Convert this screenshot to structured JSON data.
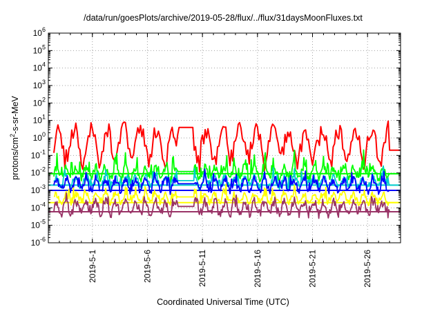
{
  "chart_data": {
    "type": "line",
    "title": "/data/run/goesPlots/archive/2019-05-28/flux/../flux/31daysMoonFluxes.txt",
    "xlabel": "Coordinated Universal Time (UTC)",
    "ylabel_parts": {
      "before": "protons/cm",
      "sup": "2",
      "after": "-s-sr-MeV"
    },
    "x_range": [
      "2019-04-27",
      "2019-05-29"
    ],
    "x_ticks": [
      "2019-5-1",
      "2019-5-6",
      "2019-5-11",
      "2019-5-16",
      "2019-5-21",
      "2019-5-26"
    ],
    "x_tick_dates": [
      "2019-05-01",
      "2019-05-06",
      "2019-05-11",
      "2019-05-16",
      "2019-05-21",
      "2019-05-26"
    ],
    "y_scale": "log",
    "ylim": [
      1e-06,
      1000000.0
    ],
    "y_ticks": [
      {
        "base": "10",
        "exp": "-6"
      },
      {
        "base": "10",
        "exp": "-5"
      },
      {
        "base": "10",
        "exp": "-4"
      },
      {
        "base": "10",
        "exp": "-3"
      },
      {
        "base": "10",
        "exp": "-2"
      },
      {
        "base": "10",
        "exp": "-1"
      },
      {
        "base": "10",
        "exp": "0"
      },
      {
        "base": "10",
        "exp": "1"
      },
      {
        "base": "10",
        "exp": "2"
      },
      {
        "base": "10",
        "exp": "3"
      },
      {
        "base": "10",
        "exp": "4"
      },
      {
        "base": "10",
        "exp": "5"
      },
      {
        "base": "10",
        "exp": "6"
      }
    ],
    "grid": true,
    "legend": "none",
    "series": [
      {
        "color": "#ff0000",
        "baseline": 0.5,
        "spread": 1.1,
        "spike_exp": 0.0,
        "period_days": 1.5,
        "flat_from": "2019-05-28",
        "flat_value": 0.2
      },
      {
        "color": "#00ff00",
        "baseline": 0.01,
        "spread": 0.45,
        "spike_exp": 0.9,
        "period_days": 0.9,
        "flat_from": "2019-05-28",
        "flat_value": 0.009
      },
      {
        "color": "#00cccc",
        "baseline": 0.003,
        "spread": 0.4,
        "spike_exp": 0.5,
        "period_days": 0.9,
        "flat_from": "2019-05-28",
        "flat_value": 0.002
      },
      {
        "color": "#0000ff",
        "baseline": 0.002,
        "spread": 0.45,
        "spike_exp": 0.6,
        "period_days": 0.9,
        "flat_from": "2019-05-28",
        "flat_value": 0.001
      },
      {
        "color": "#ffff00",
        "baseline": 0.00035,
        "spread": 0.35,
        "spike_exp": 0.5,
        "period_days": 0.9,
        "flat_from": "2019-05-28",
        "flat_value": 0.0002
      },
      {
        "color": "#993366",
        "baseline": 0.0001,
        "spread": 0.5,
        "spike_exp": 0.4,
        "period_days": 0.9,
        "flat_from": "2019-05-28",
        "flat_value": 6e-05
      }
    ]
  }
}
